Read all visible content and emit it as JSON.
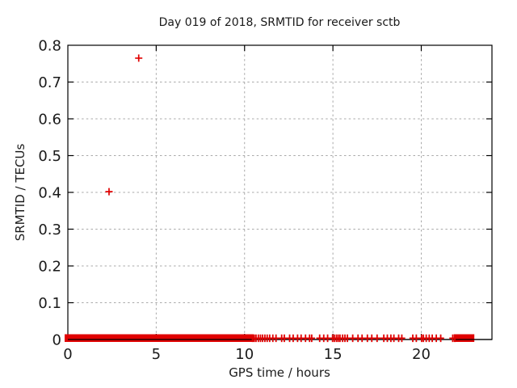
{
  "title": "Day 019 of 2018, SRMTID for receiver sctb",
  "colors": {
    "marker": "#e00000",
    "grid": "#a9a9a9",
    "border": "#000000",
    "text": "#1a1a1a",
    "background": "#ffffff"
  },
  "chart_data": {
    "type": "scatter",
    "title": "Day 019 of 2018, SRMTID for receiver sctb",
    "xlabel": "GPS time / hours",
    "ylabel": "SRMTID / TECUs",
    "xlim": [
      0,
      24
    ],
    "ylim": [
      0,
      0.8
    ],
    "x_ticks": [
      "0",
      "5",
      "10",
      "15",
      "20"
    ],
    "y_ticks": [
      "0",
      "0.1",
      "0.2",
      "0.3",
      "0.4",
      "0.5",
      "0.6",
      "0.7",
      "0.8"
    ],
    "grid": true,
    "legend": "none",
    "marker": "plus",
    "series": [
      {
        "name": "SRMTID",
        "outlier_points": [
          {
            "x": 2.33,
            "y": 0.402
          },
          {
            "x": 4.01,
            "y": 0.765
          }
        ],
        "baseline_value": 0,
        "baseline_dense_bands_hours": [
          {
            "start": 0.0,
            "end": 10.33
          },
          {
            "start": 22.02,
            "end": 22.82
          }
        ],
        "baseline_scatter_hours": [
          10.45,
          10.55,
          10.65,
          10.78,
          10.9,
          11.02,
          11.15,
          11.28,
          11.42,
          11.6,
          11.78,
          12.1,
          12.25,
          12.55,
          12.75,
          13.0,
          13.2,
          13.45,
          13.68,
          13.8,
          14.25,
          14.48,
          14.7,
          14.98,
          15.08,
          15.2,
          15.3,
          15.4,
          15.55,
          15.68,
          15.82,
          16.12,
          16.42,
          16.65,
          16.95,
          17.2,
          17.5,
          17.88,
          18.08,
          18.28,
          18.45,
          18.72,
          18.9,
          19.52,
          19.72,
          20.02,
          20.12,
          20.28,
          20.45,
          20.62,
          20.85,
          21.1,
          21.78,
          21.9
        ]
      }
    ]
  }
}
